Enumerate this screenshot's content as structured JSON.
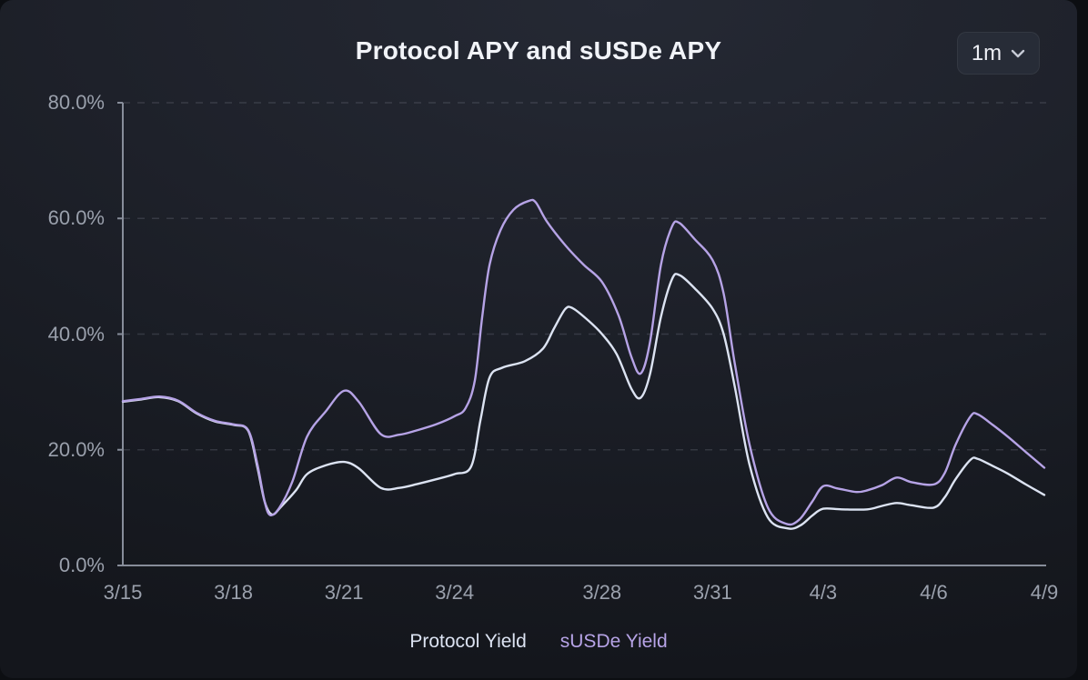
{
  "header": {
    "title": "Protocol APY and sUSDe APY",
    "timeframe": {
      "selected": "1m"
    }
  },
  "icons": {
    "timeframe_chevron": "chevron-down"
  },
  "colors": {
    "card_background": "#1d212a",
    "title_text": "#f1f3f8",
    "axis_text": "#9aa0ac",
    "axis_line": "#878d9a",
    "gridline": "rgba(160,166,180,0.20)",
    "protocol_yield": "#dce3f2",
    "susde_yield": "#b6a3e6",
    "dropdown_background": "#272c37"
  },
  "chart_data": {
    "type": "line",
    "title": "Protocol APY and sUSDe APY",
    "xlabel": "",
    "ylabel": "",
    "x_unit": "days since 3/15",
    "x_domain_days": [
      0,
      25
    ],
    "x_tick_positions_days": [
      0,
      3,
      6,
      9,
      13,
      16,
      19,
      22,
      25
    ],
    "x_tick_labels": [
      "3/15",
      "3/18",
      "3/21",
      "3/24",
      "3/28",
      "3/31",
      "4/3",
      "4/6",
      "4/9"
    ],
    "ylim": [
      0,
      80
    ],
    "y_tick_values": [
      0,
      20,
      40,
      60,
      80
    ],
    "y_tick_labels": [
      "0.0%",
      "20.0%",
      "40.0%",
      "60.0%",
      "80.0%"
    ],
    "grid": "horizontal-dashed",
    "legend_position": "bottom",
    "series": [
      {
        "name": "Protocol Yield",
        "color": "#dce3f2",
        "unit": "%",
        "points_day_value": [
          [
            0,
            28.3
          ],
          [
            0.5,
            28.7
          ],
          [
            1,
            29.1
          ],
          [
            1.5,
            28.4
          ],
          [
            2,
            26.3
          ],
          [
            2.5,
            24.9
          ],
          [
            3,
            24.3
          ],
          [
            3.4,
            23.3
          ],
          [
            3.65,
            17
          ],
          [
            3.85,
            11
          ],
          [
            4.05,
            8.8
          ],
          [
            4.3,
            10.2
          ],
          [
            4.7,
            13
          ],
          [
            5,
            15.8
          ],
          [
            5.5,
            17.3
          ],
          [
            6,
            17.9
          ],
          [
            6.4,
            16.8
          ],
          [
            7,
            13.4
          ],
          [
            7.5,
            13.4
          ],
          [
            8,
            14.1
          ],
          [
            8.5,
            14.9
          ],
          [
            9,
            15.8
          ],
          [
            9.45,
            17.1
          ],
          [
            9.7,
            25
          ],
          [
            9.95,
            32.5
          ],
          [
            10.3,
            34.2
          ],
          [
            10.9,
            35.3
          ],
          [
            11.4,
            37.5
          ],
          [
            11.7,
            41
          ],
          [
            12,
            44.3
          ],
          [
            12.2,
            44.5
          ],
          [
            12.6,
            42.5
          ],
          [
            13,
            40
          ],
          [
            13.4,
            36.5
          ],
          [
            13.8,
            30.5
          ],
          [
            14.05,
            29
          ],
          [
            14.3,
            33
          ],
          [
            14.6,
            43
          ],
          [
            14.9,
            49.5
          ],
          [
            15.1,
            50.2
          ],
          [
            15.5,
            48
          ],
          [
            16,
            44.4
          ],
          [
            16.3,
            40
          ],
          [
            16.6,
            31
          ],
          [
            17,
            17.5
          ],
          [
            17.5,
            8.3
          ],
          [
            18.05,
            6.4
          ],
          [
            18.4,
            7
          ],
          [
            18.7,
            8.6
          ],
          [
            19,
            9.8
          ],
          [
            19.5,
            9.7
          ],
          [
            20.2,
            9.7
          ],
          [
            20.6,
            10.3
          ],
          [
            21,
            10.8
          ],
          [
            21.4,
            10.4
          ],
          [
            22,
            10
          ],
          [
            22.3,
            11.8
          ],
          [
            22.6,
            15
          ],
          [
            23,
            18.3
          ],
          [
            23.2,
            18.4
          ],
          [
            23.6,
            17.2
          ],
          [
            24,
            15.9
          ],
          [
            24.5,
            14
          ],
          [
            25,
            12.2
          ]
        ]
      },
      {
        "name": "sUSDe Yield",
        "color": "#b6a3e6",
        "unit": "%",
        "points_day_value": [
          [
            0,
            28.4
          ],
          [
            0.5,
            28.8
          ],
          [
            1,
            29.2
          ],
          [
            1.5,
            28.5
          ],
          [
            2,
            26.4
          ],
          [
            2.5,
            25
          ],
          [
            3,
            24.4
          ],
          [
            3.4,
            23.4
          ],
          [
            3.65,
            17.5
          ],
          [
            3.85,
            11
          ],
          [
            4,
            8.7
          ],
          [
            4.25,
            10
          ],
          [
            4.6,
            14.5
          ],
          [
            5,
            22.3
          ],
          [
            5.5,
            26.6
          ],
          [
            6,
            30.2
          ],
          [
            6.4,
            28.3
          ],
          [
            7,
            22.7
          ],
          [
            7.5,
            22.6
          ],
          [
            8,
            23.4
          ],
          [
            8.5,
            24.4
          ],
          [
            9,
            25.8
          ],
          [
            9.3,
            27.2
          ],
          [
            9.55,
            32
          ],
          [
            9.75,
            43
          ],
          [
            9.95,
            52
          ],
          [
            10.25,
            58
          ],
          [
            10.6,
            61.5
          ],
          [
            11,
            63
          ],
          [
            11.2,
            62.8
          ],
          [
            11.5,
            59.5
          ],
          [
            12,
            55.4
          ],
          [
            12.5,
            52
          ],
          [
            13,
            49
          ],
          [
            13.45,
            43.2
          ],
          [
            13.8,
            36
          ],
          [
            14.05,
            33.2
          ],
          [
            14.3,
            38.5
          ],
          [
            14.6,
            52
          ],
          [
            14.9,
            58.6
          ],
          [
            15.1,
            59.2
          ],
          [
            15.5,
            56.5
          ],
          [
            16,
            52.8
          ],
          [
            16.3,
            47
          ],
          [
            16.6,
            35
          ],
          [
            17,
            21
          ],
          [
            17.5,
            10
          ],
          [
            18,
            7.2
          ],
          [
            18.35,
            7.9
          ],
          [
            18.7,
            11
          ],
          [
            19,
            13.7
          ],
          [
            19.4,
            13.3
          ],
          [
            19.9,
            12.7
          ],
          [
            20.2,
            13
          ],
          [
            20.6,
            13.9
          ],
          [
            21,
            15.2
          ],
          [
            21.4,
            14.4
          ],
          [
            22,
            14
          ],
          [
            22.3,
            16
          ],
          [
            22.6,
            21
          ],
          [
            23,
            25.8
          ],
          [
            23.2,
            26.1
          ],
          [
            23.6,
            24.3
          ],
          [
            24,
            22.3
          ],
          [
            24.5,
            19.6
          ],
          [
            25,
            16.9
          ]
        ]
      }
    ]
  }
}
